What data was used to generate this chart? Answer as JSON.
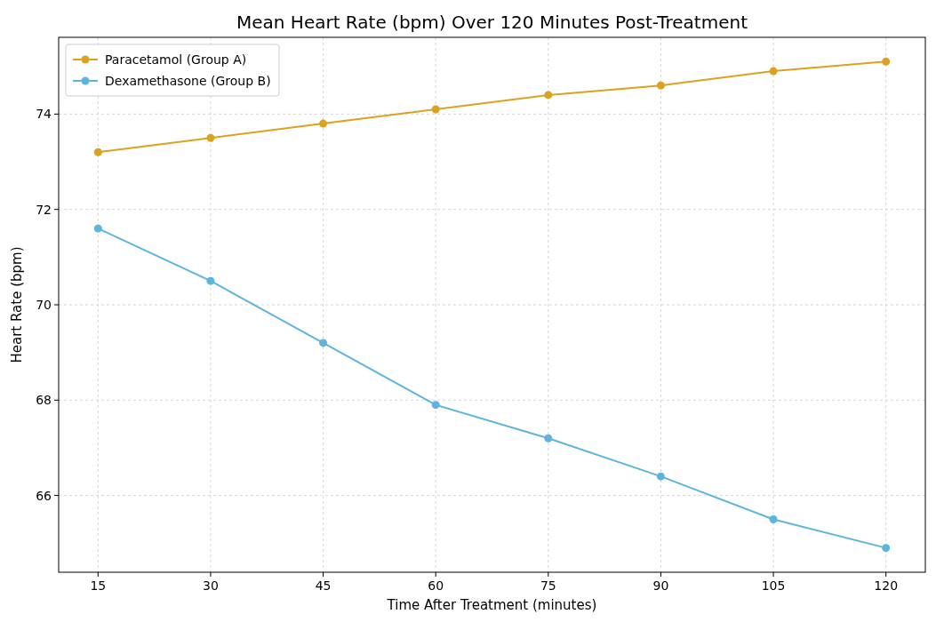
{
  "chart_data": {
    "type": "line",
    "title": "Mean Heart Rate (bpm) Over 120 Minutes Post-Treatment",
    "xlabel": "Time After Treatment (minutes)",
    "ylabel": "Heart Rate (bpm)",
    "x": [
      15,
      30,
      45,
      60,
      75,
      90,
      105,
      120
    ],
    "series": [
      {
        "name": "Paracetamol (Group A)",
        "color": "#dba21f",
        "values": [
          73.2,
          73.5,
          73.8,
          74.1,
          74.4,
          74.6,
          74.9,
          75.1
        ]
      },
      {
        "name": "Dexamethasone (Group B)",
        "color": "#5eb4dc",
        "values": [
          71.6,
          70.5,
          69.2,
          67.9,
          67.2,
          66.4,
          65.5,
          64.9
        ]
      }
    ],
    "xlim": [
      9.75,
      125.25
    ],
    "xticks": [
      15,
      30,
      45,
      60,
      75,
      90,
      105,
      120
    ],
    "ylim": [
      64.39,
      75.61
    ],
    "yticks": [
      66,
      68,
      70,
      72,
      74
    ],
    "grid": true,
    "legend": "top left",
    "marker": "circle",
    "line_style": "solid"
  }
}
